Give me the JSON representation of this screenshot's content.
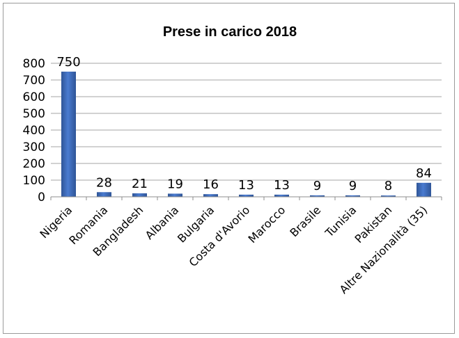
{
  "chart_data": {
    "type": "bar",
    "title": "Prese in carico 2018",
    "xlabel": "",
    "ylabel": "",
    "categories": [
      "Nigeria",
      "Romania",
      "Bangladesh",
      "Albania",
      "Bulgaria",
      "Costa d'Avorio",
      "Marocco",
      "Brasile",
      "Tunisia",
      "Pakistan",
      "Altre Nazionalità (35)"
    ],
    "values": [
      750,
      28,
      21,
      19,
      16,
      13,
      13,
      9,
      9,
      8,
      84
    ],
    "data_labels": [
      "750",
      "28",
      "21",
      "19",
      "16",
      "13",
      "13",
      "9",
      "9",
      "8",
      "84"
    ],
    "yticks": [
      "0",
      "100",
      "200",
      "300",
      "400",
      "500",
      "600",
      "700",
      "800"
    ],
    "ylim": [
      0,
      800
    ],
    "grid": true,
    "legend": "none",
    "bar_color": "#4472c4",
    "bar_color_dark": "#2f5597",
    "grid_color": "#a6a6a6"
  }
}
